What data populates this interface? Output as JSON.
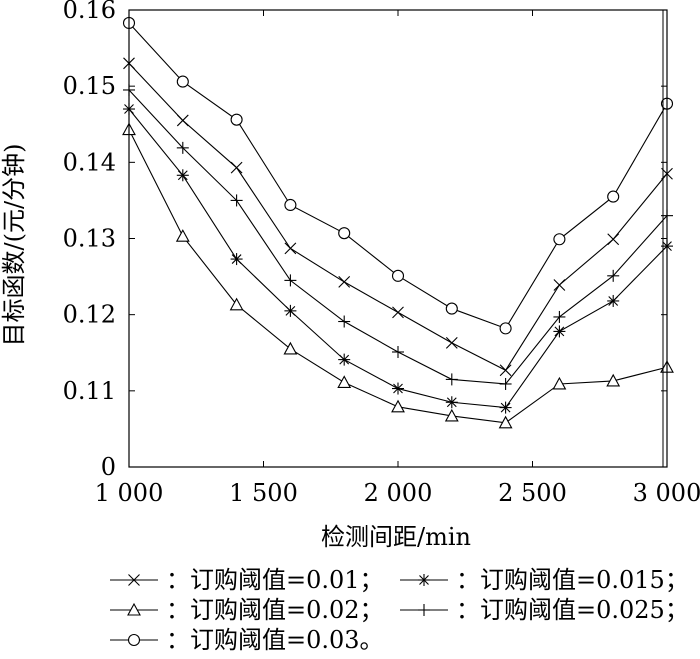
{
  "chart_data": {
    "type": "line",
    "xlabel": "检测间距/min",
    "ylabel": "目标函数/(元/分钟)",
    "xlim": [
      1000,
      3000
    ],
    "ylim": [
      0.1,
      0.16
    ],
    "x_ticks": [
      {
        "value": 1000,
        "label": "1 000"
      },
      {
        "value": 1500,
        "label": "1 500"
      },
      {
        "value": 2000,
        "label": "2 000"
      },
      {
        "value": 2500,
        "label": "2 500"
      },
      {
        "value": 3000,
        "label": "3 000"
      }
    ],
    "y_ticks": [
      {
        "value": 0.1,
        "label": "0"
      },
      {
        "value": 0.11,
        "label": "0.11"
      },
      {
        "value": 0.12,
        "label": "0.12"
      },
      {
        "value": 0.13,
        "label": "0.13"
      },
      {
        "value": 0.14,
        "label": "0.14"
      },
      {
        "value": 0.15,
        "label": "0.15"
      },
      {
        "value": 0.16,
        "label": "0.16"
      }
    ],
    "x": [
      1000,
      1200,
      1400,
      1600,
      1800,
      2000,
      2200,
      2400,
      2600,
      2800,
      3000
    ],
    "series": [
      {
        "name": "：订购阈值=0.01；",
        "marker": "x",
        "values": [
          0.153,
          0.1455,
          0.1393,
          0.1287,
          0.1243,
          0.1203,
          0.1163,
          0.1127,
          0.1239,
          0.1299,
          0.1385
        ]
      },
      {
        "name": "：订购阈值=0.015；",
        "marker": "star",
        "values": [
          0.147,
          0.1383,
          0.1273,
          0.1205,
          0.1141,
          0.1103,
          0.1085,
          0.1078,
          0.1178,
          0.1218,
          0.129
        ]
      },
      {
        "name": "：订购阈值=0.02；",
        "marker": "triangle",
        "values": [
          0.1443,
          0.1303,
          0.1213,
          0.1155,
          0.1111,
          0.1079,
          0.1067,
          0.1058,
          0.1109,
          0.1113,
          0.1131
        ]
      },
      {
        "name": "：订购阈值=0.025；",
        "marker": "plus",
        "values": [
          0.1495,
          0.1419,
          0.135,
          0.1245,
          0.1191,
          0.1151,
          0.1115,
          0.1109,
          0.1197,
          0.1251,
          0.133
        ]
      },
      {
        "name": "：订购阈值=0.03。",
        "marker": "circle",
        "values": [
          0.1583,
          0.1506,
          0.1456,
          0.1344,
          0.1307,
          0.1251,
          0.1208,
          0.1182,
          0.1299,
          0.1355,
          0.1477
        ]
      }
    ],
    "grid": false,
    "legend_position": "bottom"
  }
}
